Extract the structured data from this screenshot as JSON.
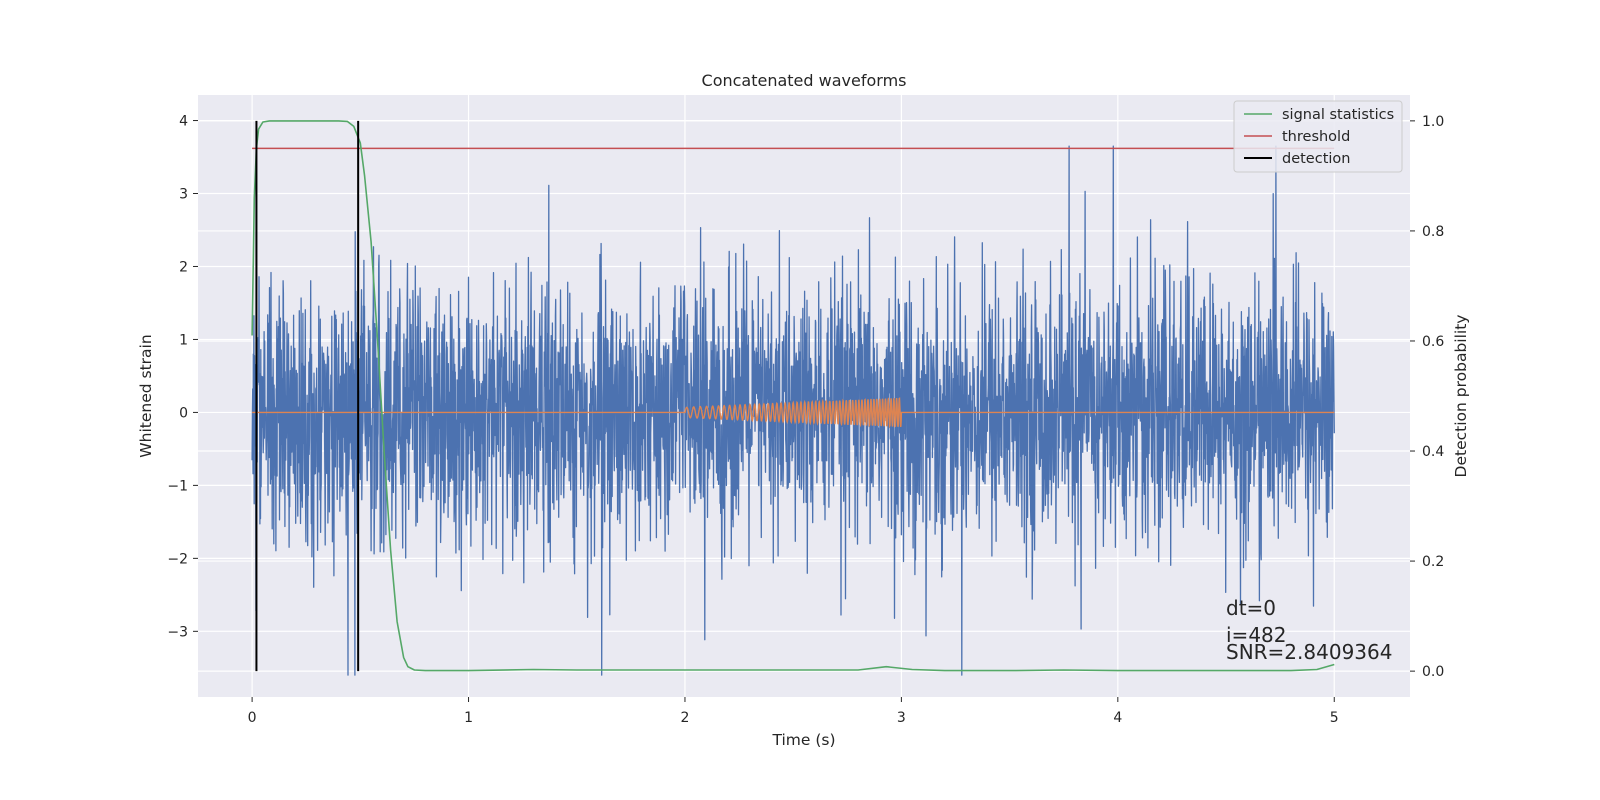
{
  "chart_data": {
    "type": "line",
    "title": "Concatenated waveforms",
    "xlabel": "Time (s)",
    "ylabel": "Whitened strain",
    "y2label": "Detection probability",
    "xlim": [
      -0.25,
      5.35
    ],
    "ylim": [
      -3.9,
      4.35
    ],
    "y2lim": [
      -0.047,
      1.047
    ],
    "xticks": [
      0,
      1,
      2,
      3,
      4,
      5
    ],
    "xtick_labels": [
      "0",
      "1",
      "2",
      "3",
      "4",
      "5"
    ],
    "yticks": [
      -3,
      -2,
      -1,
      0,
      1,
      2,
      3,
      4
    ],
    "ytick_labels": [
      "−3",
      "−2",
      "−1",
      "0",
      "1",
      "2",
      "3",
      "4"
    ],
    "y2ticks": [
      0.0,
      0.2,
      0.4,
      0.6,
      0.8,
      1.0
    ],
    "y2tick_labels": [
      "0.0",
      "0.2",
      "0.4",
      "0.6",
      "0.8",
      "1.0"
    ],
    "grid": true,
    "legend_position": "top-right",
    "series": [
      {
        "name": "",
        "axis": "left",
        "color": "#4c72b0",
        "kind": "whitened-strain-noise",
        "x_range": [
          0,
          5
        ],
        "typical_amplitude": 0.85,
        "peak_range": [
          -3.6,
          3.65
        ]
      },
      {
        "name": "",
        "axis": "left",
        "color": "#dd8452",
        "kind": "injected-chirp",
        "x_range": [
          0,
          5
        ],
        "chirp_x_range": [
          2,
          3
        ],
        "amplitude_range": [
          0.07,
          0.2
        ]
      },
      {
        "name": "signal statistics",
        "axis": "right",
        "color": "#55a868",
        "x": [
          0,
          0.01,
          0.02,
          0.03,
          0.05,
          0.08,
          0.12,
          0.2,
          0.3,
          0.4,
          0.44,
          0.47,
          0.5,
          0.52,
          0.55,
          0.58,
          0.61,
          0.64,
          0.67,
          0.7,
          0.72,
          0.75,
          0.8,
          1.0,
          1.3,
          1.5,
          2.0,
          2.5,
          2.8,
          2.93,
          3.05,
          3.2,
          3.5,
          3.75,
          4.0,
          4.5,
          4.8,
          4.92,
          5.0
        ],
        "y": [
          0.61,
          0.86,
          0.95,
          0.985,
          0.998,
          1.0,
          1.0,
          1.0,
          1.0,
          1.0,
          0.999,
          0.99,
          0.96,
          0.9,
          0.78,
          0.6,
          0.4,
          0.22,
          0.09,
          0.025,
          0.008,
          0.002,
          0.001,
          0.001,
          0.003,
          0.002,
          0.002,
          0.002,
          0.002,
          0.008,
          0.003,
          0.001,
          0.001,
          0.002,
          0.001,
          0.001,
          0.001,
          0.003,
          0.012
        ]
      },
      {
        "name": "threshold",
        "axis": "right",
        "color": "#c44e52",
        "x": [
          0,
          5
        ],
        "y": [
          0.95,
          0.95
        ]
      },
      {
        "name": "detection",
        "axis": "right",
        "color": "#000000",
        "vlines_x": [
          0.02,
          0.49
        ],
        "y_range": [
          0,
          1
        ]
      }
    ],
    "annotations": [
      "dt=0",
      "i=482",
      "SNR=2.8409364"
    ]
  }
}
